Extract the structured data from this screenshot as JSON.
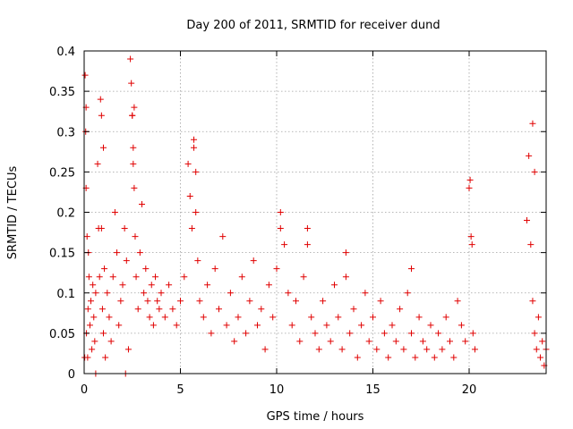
{
  "chart_data": {
    "type": "scatter",
    "title": "Day 200 of 2011, SRMTID for receiver dund",
    "xlabel": "GPS time / hours",
    "ylabel": "SRMTID / TECUs",
    "xlim": [
      0,
      24
    ],
    "ylim": [
      0,
      0.4
    ],
    "xticks": [
      0,
      5,
      10,
      15,
      20
    ],
    "xtick_labels": [
      "0",
      "5",
      "10",
      "15",
      "20"
    ],
    "yticks": [
      0,
      0.05,
      0.1,
      0.15,
      0.2,
      0.25,
      0.3,
      0.35,
      0.4
    ],
    "ytick_labels": [
      "0",
      "0.05",
      "0.1",
      "0.15",
      "0.2",
      "0.25",
      "0.3",
      "0.35",
      "0.4"
    ],
    "grid": true,
    "marker": "+",
    "color": "#e00000",
    "series": [
      {
        "name": "SRMTID",
        "x": [
          0.05,
          0.08,
          0.1,
          0.12,
          0.15,
          0.18,
          0.2,
          0.22,
          0.25,
          0.3,
          0.35,
          0.4,
          0.45,
          0.5,
          0.55,
          0.6,
          0.7,
          0.75,
          0.8,
          0.85,
          0.9,
          0.95,
          1.0,
          1.05,
          1.1,
          1.2,
          1.3,
          1.4,
          1.5,
          1.6,
          1.7,
          1.8,
          1.9,
          2.0,
          2.1,
          2.2,
          2.3,
          2.4,
          2.45,
          2.5,
          2.55,
          2.6,
          2.65,
          2.7,
          2.8,
          2.9,
          3.0,
          3.1,
          3.2,
          3.3,
          3.4,
          3.5,
          3.6,
          3.7,
          3.8,
          3.9,
          4.0,
          4.2,
          4.4,
          4.6,
          4.8,
          5.0,
          5.2,
          5.4,
          5.5,
          5.6,
          5.7,
          5.8,
          5.9,
          6.0,
          6.2,
          6.4,
          6.6,
          6.8,
          7.0,
          7.2,
          7.4,
          7.6,
          7.8,
          8.0,
          8.2,
          8.4,
          8.6,
          8.8,
          9.0,
          9.2,
          9.4,
          9.6,
          9.8,
          10.0,
          10.2,
          10.4,
          10.6,
          10.8,
          11.0,
          11.2,
          11.4,
          11.6,
          11.8,
          12.0,
          12.2,
          12.4,
          12.6,
          12.8,
          13.0,
          13.2,
          13.4,
          13.6,
          13.8,
          14.0,
          14.2,
          14.4,
          14.6,
          14.8,
          15.0,
          15.2,
          15.4,
          15.6,
          15.8,
          16.0,
          16.2,
          16.4,
          16.6,
          16.8,
          17.0,
          17.2,
          17.4,
          17.6,
          17.8,
          18.0,
          18.2,
          18.4,
          18.6,
          18.8,
          19.0,
          19.2,
          19.4,
          19.6,
          19.8,
          20.0,
          20.1,
          20.2,
          20.3,
          23.0,
          23.1,
          23.2,
          23.3,
          23.4,
          23.5,
          23.6,
          23.7,
          23.8,
          23.9,
          24.0,
          0.03,
          0.1,
          0.9,
          1.0,
          2.5,
          2.55,
          2.6,
          5.7,
          5.8,
          10.2,
          11.6,
          13.6,
          17.0,
          20.05,
          20.15,
          23.3,
          23.4,
          0.6,
          2.15
        ],
        "y": [
          0.37,
          0.3,
          0.23,
          0.05,
          0.17,
          0.02,
          0.08,
          0.15,
          0.12,
          0.06,
          0.09,
          0.03,
          0.11,
          0.07,
          0.04,
          0.1,
          0.26,
          0.18,
          0.12,
          0.34,
          0.32,
          0.08,
          0.05,
          0.13,
          0.02,
          0.1,
          0.07,
          0.04,
          0.12,
          0.2,
          0.15,
          0.06,
          0.09,
          0.11,
          0.18,
          0.14,
          0.03,
          0.39,
          0.36,
          0.32,
          0.28,
          0.23,
          0.17,
          0.12,
          0.08,
          0.15,
          0.21,
          0.1,
          0.13,
          0.09,
          0.07,
          0.11,
          0.06,
          0.12,
          0.09,
          0.08,
          0.1,
          0.07,
          0.11,
          0.08,
          0.06,
          0.09,
          0.12,
          0.26,
          0.22,
          0.18,
          0.29,
          0.25,
          0.14,
          0.09,
          0.07,
          0.11,
          0.05,
          0.13,
          0.08,
          0.17,
          0.06,
          0.1,
          0.04,
          0.07,
          0.12,
          0.05,
          0.09,
          0.14,
          0.06,
          0.08,
          0.03,
          0.11,
          0.07,
          0.13,
          0.2,
          0.16,
          0.1,
          0.06,
          0.09,
          0.04,
          0.12,
          0.18,
          0.07,
          0.05,
          0.03,
          0.09,
          0.06,
          0.04,
          0.11,
          0.07,
          0.03,
          0.15,
          0.05,
          0.08,
          0.02,
          0.06,
          0.1,
          0.04,
          0.07,
          0.03,
          0.09,
          0.05,
          0.02,
          0.06,
          0.04,
          0.08,
          0.03,
          0.1,
          0.05,
          0.02,
          0.07,
          0.04,
          0.03,
          0.06,
          0.02,
          0.05,
          0.03,
          0.07,
          0.04,
          0.02,
          0.09,
          0.06,
          0.04,
          0.23,
          0.17,
          0.05,
          0.03,
          0.19,
          0.27,
          0.16,
          0.09,
          0.05,
          0.03,
          0.07,
          0.02,
          0.04,
          0.01,
          0.03,
          0.02,
          0.33,
          0.18,
          0.28,
          0.32,
          0.26,
          0.33,
          0.28,
          0.2,
          0.18,
          0.16,
          0.12,
          0.13,
          0.24,
          0.16,
          0.31,
          0.25,
          0.0,
          0.0
        ]
      }
    ]
  }
}
